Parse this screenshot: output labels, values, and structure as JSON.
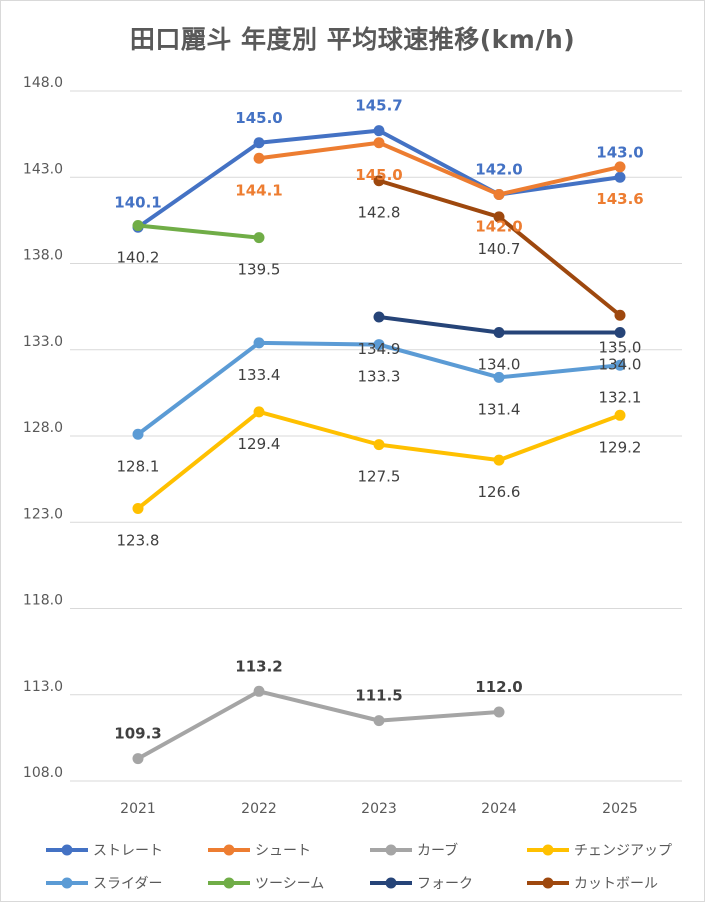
{
  "chart_data": {
    "type": "line",
    "title": "田口麗斗 年度別 平均球速推移(km/h)",
    "categories": [
      "2021",
      "2022",
      "2023",
      "2024",
      "2025"
    ],
    "ylim": [
      108,
      148
    ],
    "yticks": [
      "148.0",
      "143.0",
      "138.0",
      "133.0",
      "128.0",
      "123.0",
      "118.0",
      "113.0",
      "108.0"
    ],
    "grid": true,
    "legend_position": "bottom",
    "series": [
      {
        "name": "ストレート",
        "color": "#4472C4",
        "values": [
          140.1,
          145.0,
          145.7,
          142.0,
          143.0
        ],
        "labels": [
          "140.1",
          "145.0",
          "145.7",
          "142.0",
          "143.0"
        ],
        "label_pos": "above",
        "label_bold": true
      },
      {
        "name": "シュート",
        "color": "#ED7D31",
        "values": [
          null,
          144.1,
          145.0,
          142.0,
          143.6
        ],
        "labels": [
          "",
          "144.1",
          "145.0",
          "142.0",
          "143.6"
        ],
        "label_pos": "below",
        "label_bold": true
      },
      {
        "name": "カーブ",
        "color": "#A5A5A5",
        "values": [
          109.3,
          113.2,
          111.5,
          112.0,
          null
        ],
        "labels": [
          "109.3",
          "113.2",
          "111.5",
          "112.0",
          ""
        ],
        "label_pos": "above",
        "label_bold": true
      },
      {
        "name": "チェンジアップ",
        "color": "#FFC000",
        "values": [
          123.8,
          129.4,
          127.5,
          126.6,
          129.2
        ],
        "labels": [
          "123.8",
          "129.4",
          "127.5",
          "126.6",
          "129.2"
        ],
        "label_pos": "below",
        "label_bold": false
      },
      {
        "name": "スライダー",
        "color": "#5B9BD5",
        "values": [
          128.1,
          133.4,
          133.3,
          131.4,
          132.1
        ],
        "labels": [
          "128.1",
          "133.4",
          "133.3",
          "131.4",
          "132.1"
        ],
        "label_pos": "below",
        "label_bold": false
      },
      {
        "name": "ツーシーム",
        "color": "#70AD47",
        "values": [
          140.2,
          139.5,
          null,
          null,
          null
        ],
        "labels": [
          "140.2",
          "139.5",
          "",
          "",
          ""
        ],
        "label_pos": "below",
        "label_bold": false
      },
      {
        "name": "フォーク",
        "color": "#264478",
        "values": [
          null,
          null,
          134.9,
          134.0,
          134.0
        ],
        "labels": [
          "",
          "",
          "134.9",
          "134.0",
          "134.0"
        ],
        "label_pos": "below",
        "label_bold": false
      },
      {
        "name": "カットボール",
        "color": "#9E480E",
        "values": [
          null,
          null,
          142.8,
          140.7,
          135.0
        ],
        "labels": [
          "",
          "",
          "142.8",
          "140.7",
          "135.0"
        ],
        "label_pos": "below",
        "label_bold": false
      }
    ]
  }
}
